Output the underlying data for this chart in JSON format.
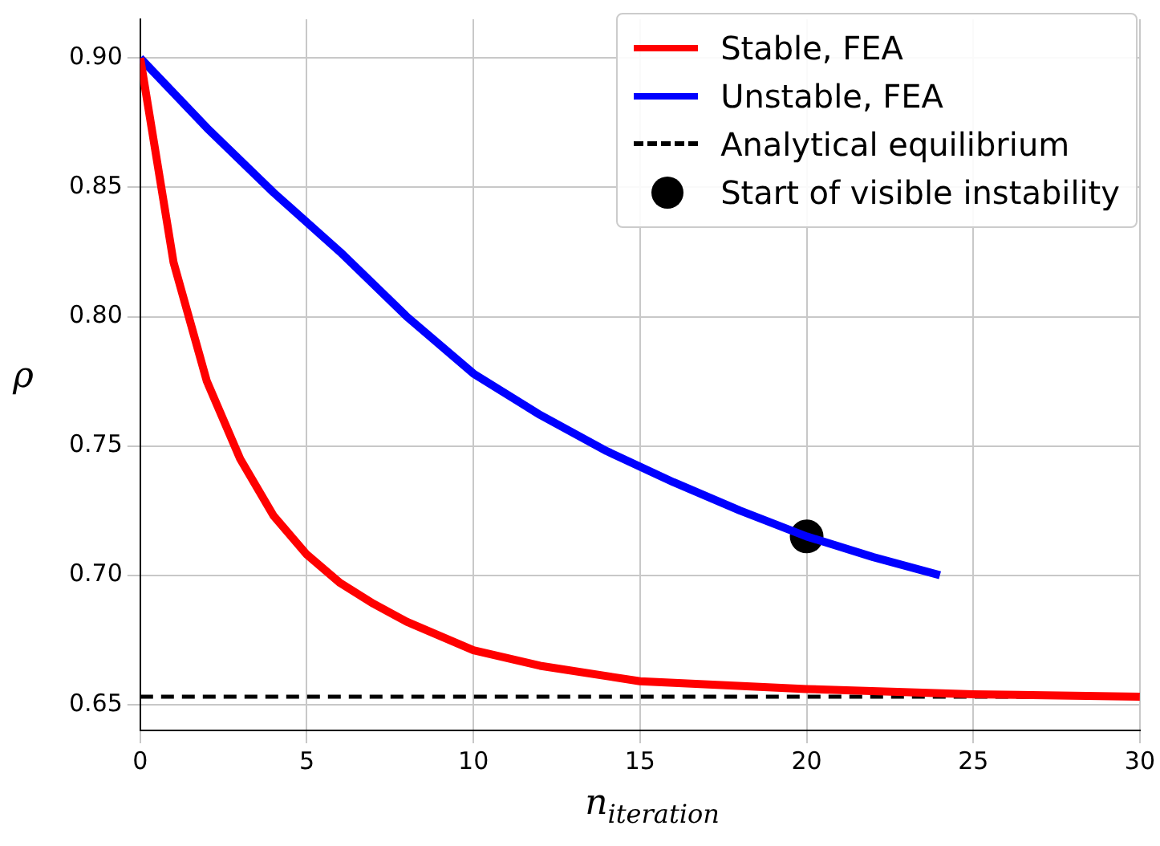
{
  "chart_data": {
    "type": "line",
    "xlabel": "n$_{iteration}$",
    "ylabel": "ρ",
    "xlim": [
      0,
      30
    ],
    "ylim": [
      0.64,
      0.915
    ],
    "xticks": [
      0,
      5,
      10,
      15,
      20,
      25,
      30
    ],
    "yticks": [
      {
        "value": 0.65,
        "label": "0.65"
      },
      {
        "value": 0.7,
        "label": "0.70"
      },
      {
        "value": 0.75,
        "label": "0.75"
      },
      {
        "value": 0.8,
        "label": "0.80"
      },
      {
        "value": 0.85,
        "label": "0.85"
      },
      {
        "value": 0.9,
        "label": "0.90"
      }
    ],
    "grid": true,
    "legend": "top right",
    "line_style": "solid",
    "series": [
      {
        "name": "Stable, FEA",
        "color": "#ff0000",
        "x": [
          0,
          1,
          2,
          3,
          4,
          5,
          6,
          7,
          8,
          10,
          12,
          15,
          20,
          25,
          30
        ],
        "values": [
          0.9,
          0.821,
          0.775,
          0.745,
          0.723,
          0.708,
          0.697,
          0.689,
          0.682,
          0.671,
          0.665,
          0.659,
          0.656,
          0.654,
          0.653
        ]
      },
      {
        "name": "Unstable, FEA",
        "color": "#0000ff",
        "x": [
          0,
          2,
          4,
          6,
          8,
          10,
          12,
          14,
          16,
          18,
          20,
          22,
          24
        ],
        "values": [
          0.9,
          0.873,
          0.848,
          0.825,
          0.8,
          0.778,
          0.762,
          0.748,
          0.736,
          0.725,
          0.715,
          0.707,
          0.7
        ]
      },
      {
        "name": "Start of visible instability",
        "type": "scatter",
        "marker": "circle",
        "color": "#000000",
        "x": [
          20
        ],
        "values": [
          0.715
        ]
      }
    ],
    "ref_lines": [
      {
        "axis": "y",
        "value": 0.653,
        "label": "Analytical equilibrium",
        "color": "#000000",
        "line_style": "dashed"
      }
    ]
  }
}
